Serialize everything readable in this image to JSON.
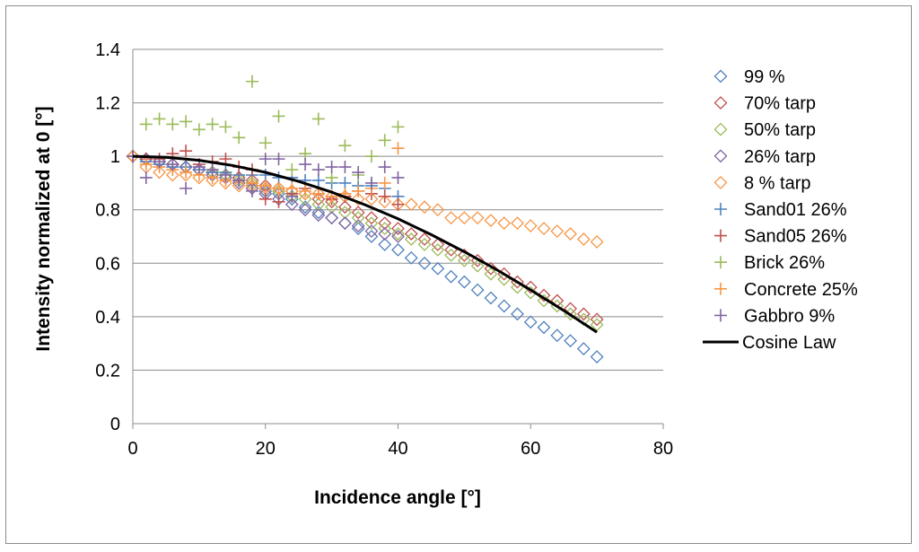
{
  "chart_data": {
    "type": "scatter",
    "title": "",
    "xlabel": "Incidence angle [°]",
    "ylabel": "Intensity normalized at 0 [°]",
    "xlim": [
      0,
      80
    ],
    "ylim": [
      0,
      1.4
    ],
    "xticks": [
      "0",
      "20",
      "40",
      "60",
      "80"
    ],
    "yticks": [
      "0",
      "0.2",
      "0.4",
      "0.6",
      "0.8",
      "1",
      "1.2",
      "1.4"
    ],
    "grid": "horizontal",
    "legend_position": "right",
    "series": [
      {
        "name": "99 %",
        "marker": "diamond",
        "color": "#4f81bd",
        "x": [
          0,
          2,
          4,
          6,
          8,
          10,
          12,
          14,
          16,
          18,
          20,
          22,
          24,
          26,
          28,
          30,
          32,
          34,
          36,
          38,
          40,
          42,
          44,
          46,
          48,
          50,
          52,
          54,
          56,
          58,
          60,
          62,
          64,
          66,
          68,
          70
        ],
        "y": [
          1.0,
          0.99,
          0.98,
          0.97,
          0.96,
          0.95,
          0.94,
          0.93,
          0.92,
          0.89,
          0.87,
          0.86,
          0.84,
          0.81,
          0.79,
          0.77,
          0.75,
          0.73,
          0.7,
          0.67,
          0.65,
          0.62,
          0.6,
          0.58,
          0.55,
          0.53,
          0.5,
          0.47,
          0.44,
          0.41,
          0.38,
          0.36,
          0.33,
          0.31,
          0.28,
          0.25
        ]
      },
      {
        "name": "70% tarp",
        "marker": "diamond",
        "color": "#c0504d",
        "x": [
          0,
          2,
          4,
          6,
          8,
          10,
          12,
          14,
          16,
          18,
          20,
          22,
          24,
          26,
          28,
          30,
          32,
          34,
          36,
          38,
          40,
          42,
          44,
          46,
          48,
          50,
          52,
          54,
          56,
          58,
          60,
          62,
          64,
          66,
          68,
          70
        ],
        "y": [
          1.0,
          0.99,
          0.98,
          0.97,
          0.96,
          0.95,
          0.94,
          0.93,
          0.92,
          0.91,
          0.89,
          0.88,
          0.87,
          0.86,
          0.84,
          0.83,
          0.81,
          0.79,
          0.77,
          0.75,
          0.73,
          0.71,
          0.69,
          0.67,
          0.65,
          0.63,
          0.61,
          0.58,
          0.56,
          0.53,
          0.51,
          0.48,
          0.46,
          0.43,
          0.41,
          0.39
        ]
      },
      {
        "name": "50% tarp",
        "marker": "diamond",
        "color": "#9bbb59",
        "x": [
          0,
          2,
          4,
          6,
          8,
          10,
          12,
          14,
          16,
          18,
          20,
          22,
          24,
          26,
          28,
          30,
          32,
          34,
          36,
          38,
          40,
          42,
          44,
          46,
          48,
          50,
          52,
          54,
          56,
          58,
          60,
          62,
          64,
          66,
          68,
          70
        ],
        "y": [
          1.0,
          0.99,
          0.98,
          0.97,
          0.96,
          0.95,
          0.94,
          0.93,
          0.91,
          0.9,
          0.88,
          0.87,
          0.85,
          0.84,
          0.82,
          0.81,
          0.79,
          0.77,
          0.75,
          0.73,
          0.71,
          0.69,
          0.67,
          0.65,
          0.63,
          0.61,
          0.59,
          0.56,
          0.54,
          0.51,
          0.49,
          0.46,
          0.44,
          0.41,
          0.39,
          0.37
        ]
      },
      {
        "name": "26% tarp",
        "marker": "diamond",
        "color": "#8064a2",
        "x": [
          0,
          2,
          4,
          6,
          8,
          10,
          12,
          14,
          16,
          18,
          20,
          22,
          24,
          26,
          28,
          30,
          32,
          34,
          36,
          38,
          40
        ],
        "y": [
          1.0,
          0.99,
          0.98,
          0.97,
          0.96,
          0.95,
          0.93,
          0.92,
          0.9,
          0.88,
          0.86,
          0.84,
          0.82,
          0.8,
          0.78,
          0.77,
          0.75,
          0.74,
          0.72,
          0.71,
          0.7
        ]
      },
      {
        "name": "8 % tarp",
        "marker": "diamond",
        "color": "#f79646",
        "x": [
          0,
          2,
          4,
          6,
          8,
          10,
          12,
          14,
          16,
          18,
          20,
          22,
          24,
          26,
          28,
          30,
          32,
          34,
          36,
          38,
          40,
          42,
          44,
          46,
          48,
          50,
          52,
          54,
          56,
          58,
          60,
          62,
          64,
          66,
          68,
          70
        ],
        "y": [
          1.0,
          0.96,
          0.94,
          0.93,
          0.93,
          0.92,
          0.91,
          0.9,
          0.89,
          0.89,
          0.88,
          0.88,
          0.87,
          0.86,
          0.86,
          0.85,
          0.85,
          0.84,
          0.84,
          0.83,
          0.82,
          0.82,
          0.81,
          0.8,
          0.77,
          0.77,
          0.77,
          0.76,
          0.75,
          0.75,
          0.74,
          0.73,
          0.72,
          0.71,
          0.69,
          0.68
        ]
      },
      {
        "name": "Sand01 26%",
        "marker": "plus",
        "color": "#4f81bd",
        "x": [
          0,
          2,
          4,
          6,
          8,
          10,
          12,
          14,
          16,
          18,
          20,
          22,
          24,
          26,
          28,
          30,
          32,
          34,
          36,
          38,
          40
        ],
        "y": [
          1.0,
          0.98,
          0.97,
          0.96,
          0.96,
          0.95,
          0.94,
          0.94,
          0.93,
          0.93,
          0.93,
          0.92,
          0.92,
          0.91,
          0.91,
          0.9,
          0.9,
          0.89,
          0.89,
          0.88,
          0.85
        ]
      },
      {
        "name": "Sand05 26%",
        "marker": "plus",
        "color": "#c0504d",
        "x": [
          0,
          2,
          4,
          6,
          8,
          10,
          12,
          14,
          16,
          18,
          20,
          22,
          24,
          26,
          28,
          30,
          32,
          34,
          36,
          38,
          40
        ],
        "y": [
          1.0,
          0.99,
          0.99,
          1.01,
          1.02,
          0.97,
          0.98,
          0.99,
          0.96,
          0.95,
          0.84,
          0.83,
          0.86,
          0.88,
          0.86,
          0.84,
          0.85,
          0.87,
          0.86,
          0.85,
          0.82
        ]
      },
      {
        "name": "Brick 26%",
        "marker": "plus",
        "color": "#9bbb59",
        "x": [
          2,
          4,
          6,
          8,
          10,
          12,
          14,
          16,
          18,
          20,
          22,
          24,
          26,
          28,
          30,
          32,
          34,
          36,
          38,
          40
        ],
        "y": [
          1.12,
          1.14,
          1.12,
          1.13,
          1.1,
          1.12,
          1.11,
          1.07,
          1.28,
          1.05,
          1.15,
          0.95,
          1.01,
          1.14,
          0.92,
          1.04,
          0.93,
          1.0,
          1.06,
          1.11
        ]
      },
      {
        "name": "Concrete 25%",
        "marker": "plus",
        "color": "#f79646",
        "x": [
          0,
          2,
          4,
          6,
          8,
          10,
          12,
          14,
          16,
          18,
          20,
          22,
          24,
          26,
          28,
          30,
          32,
          34,
          36,
          38,
          40
        ],
        "y": [
          1.0,
          0.97,
          0.96,
          0.95,
          0.94,
          0.93,
          0.92,
          0.91,
          0.91,
          0.9,
          0.89,
          0.88,
          0.88,
          0.87,
          0.86,
          0.85,
          0.86,
          0.87,
          0.88,
          0.9,
          1.03
        ]
      },
      {
        "name": "Gabbro 9%",
        "marker": "plus",
        "color": "#8064a2",
        "x": [
          0,
          2,
          4,
          6,
          8,
          10,
          12,
          14,
          16,
          18,
          20,
          22,
          24,
          26,
          28,
          30,
          32,
          34,
          36,
          38,
          40
        ],
        "y": [
          1.0,
          0.92,
          0.98,
          0.97,
          0.88,
          0.96,
          0.95,
          0.93,
          0.91,
          0.87,
          0.99,
          0.99,
          0.85,
          0.97,
          0.95,
          0.96,
          0.96,
          0.94,
          0.9,
          0.96,
          0.92
        ]
      },
      {
        "name": "Cosine Law",
        "marker": "line",
        "color": "#000000",
        "x": [
          0,
          5,
          10,
          15,
          20,
          25,
          30,
          35,
          40,
          45,
          50,
          55,
          60,
          65,
          70
        ],
        "y": [
          1.0,
          0.996,
          0.985,
          0.966,
          0.94,
          0.906,
          0.866,
          0.819,
          0.766,
          0.707,
          0.643,
          0.574,
          0.5,
          0.423,
          0.342
        ]
      }
    ]
  }
}
